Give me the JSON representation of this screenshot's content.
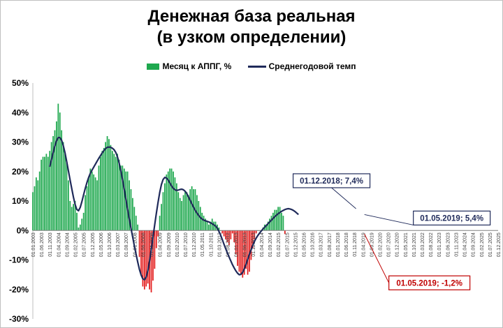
{
  "chart_data": {
    "type": "bar",
    "title_line1": "Денежная база реальная",
    "title_line2": "(в узком определении)",
    "ylim": [
      -30,
      50
    ],
    "yticks": [
      "50%",
      "40%",
      "30%",
      "20%",
      "10%",
      "0%",
      "-10%",
      "-20%",
      "-30%"
    ],
    "x_tick_labels": [
      "01.01.2003",
      "01.06.2003",
      "01.11.2003",
      "01.04.2004",
      "01.09.2004",
      "01.02.2005",
      "01.07.2005",
      "01.12.2005",
      "01.05.2006",
      "01.10.2006",
      "01.03.2007",
      "01.08.2007",
      "01.01.2008",
      "01.06.2008",
      "01.11.2008",
      "01.04.2009",
      "01.09.2009",
      "01.02.2010",
      "01.07.2010",
      "01.12.2010",
      "01.05.2011",
      "01.10.2011",
      "01.03.2012",
      "01.08.2012",
      "01.01.2013",
      "01.06.2013",
      "01.11.2013",
      "01.04.2014",
      "01.09.2014",
      "01.02.2015",
      "01.07.2015",
      "01.12.2015",
      "01.05.2016",
      "01.10.2016",
      "01.03.2017",
      "01.08.2017",
      "01.01.2018",
      "01.06.2018",
      "01.11.2018",
      "01.04.2019",
      "01.09.2019",
      "01.02.2020",
      "01.07.2020",
      "01.12.2020",
      "01.05.2021",
      "01.10.2021",
      "01.03.2022",
      "01.08.2022",
      "01.01.2023",
      "01.06.2023",
      "01.11.2023",
      "01.04.2024",
      "01.09.2024",
      "01.02.2025",
      "01.07.2025",
      "01.12.2025"
    ],
    "bar_start": "01.01.2003",
    "bar_values": [
      13,
      15,
      18,
      17,
      20,
      24,
      25,
      25,
      26,
      25,
      27,
      30,
      32,
      34,
      37,
      43,
      40,
      34,
      30,
      26,
      23,
      17,
      10,
      8,
      9,
      10,
      6,
      1,
      2,
      4,
      6,
      12,
      15,
      18,
      21,
      20,
      19,
      18,
      17,
      22,
      25,
      27,
      28,
      30,
      32,
      31,
      29,
      27,
      26,
      25,
      26,
      24,
      22,
      22,
      21,
      20,
      20,
      17,
      14,
      11,
      8,
      5,
      2,
      -9,
      -15,
      -19,
      -20,
      -19,
      -18,
      -20,
      -21,
      -17,
      -13,
      -6,
      -2,
      5,
      9,
      13,
      16,
      19,
      20,
      21,
      21,
      20,
      18,
      16,
      13,
      11,
      10,
      12,
      13,
      13,
      12,
      14,
      15,
      14,
      14,
      12,
      10,
      8,
      6,
      5,
      4,
      3,
      2,
      3,
      4,
      3,
      3,
      2,
      1,
      0,
      -1,
      -2,
      -3,
      -4,
      -5,
      -3,
      -1,
      -4,
      -8,
      -12,
      -14,
      -15,
      -16,
      -15,
      -13,
      -15,
      -14,
      -10,
      -6,
      -3,
      -1,
      0,
      0,
      0,
      1,
      2,
      2,
      3,
      4,
      5,
      6,
      7,
      7,
      8,
      8,
      6,
      5,
      -1.2
    ],
    "bar_series_name": "Месяц к АППГ, %",
    "bar_color_pos": "#1ea84e",
    "bar_color_neg": "#e31e1e",
    "line_series_name": "Среднегодовой темп",
    "line_color": "#1f2a5a",
    "line_start": "01.11.2003",
    "line_values": [
      21.6,
      24.0,
      26.4,
      28.6,
      30.4,
      31.5,
      31.5,
      30.6,
      28.8,
      26.4,
      23.4,
      20.3,
      17.2,
      14.2,
      11.3,
      8.8,
      7.1,
      6.7,
      7.8,
      9.8,
      12.1,
      14.3,
      16.3,
      18.0,
      19.4,
      20.5,
      21.5,
      22.5,
      23.5,
      24.5,
      25.4,
      26.3,
      27.1,
      27.8,
      28.2,
      28.3,
      28.2,
      27.9,
      27.4,
      26.5,
      25.0,
      22.9,
      20.3,
      17.3,
      14.0,
      10.6,
      7.2,
      3.9,
      0.8,
      -2.2,
      -5.2,
      -8.0,
      -10.7,
      -13.2,
      -15.1,
      -16.4,
      -16.7,
      -15.8,
      -13.6,
      -10.3,
      -6.4,
      -2.3,
      1.8,
      5.8,
      9.5,
      12.9,
      15.6,
      17.3,
      18.0,
      17.8,
      17.1,
      16.1,
      15.1,
      14.3,
      13.8,
      13.6,
      13.7,
      13.9,
      14.0,
      13.8,
      13.3,
      12.5,
      11.4,
      10.2,
      9.0,
      7.9,
      6.8,
      5.9,
      5.1,
      4.4,
      3.9,
      3.5,
      3.3,
      3.1,
      2.9,
      2.6,
      2.3,
      1.9,
      1.5,
      0.8,
      -0.3,
      -1.6,
      -3.1,
      -4.7,
      -6.2,
      -7.6,
      -9.0,
      -10.3,
      -11.6,
      -12.7,
      -13.7,
      -14.5,
      -15.0,
      -14.9,
      -14.2,
      -13.0,
      -11.5,
      -9.8,
      -8.1,
      -6.5,
      -5.0,
      -3.7,
      -2.6,
      -1.7,
      -0.9,
      -0.2,
      0.5,
      1.1,
      1.7,
      2.3,
      2.9,
      3.5,
      4.1,
      4.7,
      5.2,
      5.7,
      6.1,
      6.5,
      6.8,
      7.1,
      7.3,
      7.4,
      7.3,
      7.1,
      6.8,
      6.4,
      5.9,
      5.4
    ],
    "annotations": [
      {
        "label": "01.12.2018; 7,4%",
        "x": "01.12.2018",
        "y": 7.4,
        "series": "line"
      },
      {
        "label": "01.05.2019; 5,4%",
        "x": "01.05.2019",
        "y": 5.4,
        "series": "line"
      },
      {
        "label": "01.05.2019; -1,2%",
        "x": "01.05.2019",
        "y": -1.2,
        "series": "bar"
      }
    ],
    "annotation_color_line": "#1f2a5a",
    "annotation_color_bar": "#c00000",
    "legend_position": "top-center",
    "grid": false
  }
}
